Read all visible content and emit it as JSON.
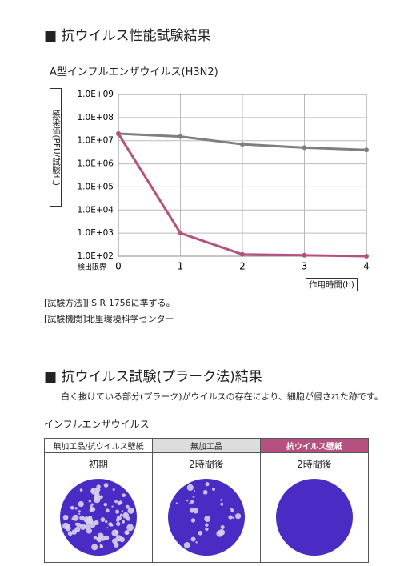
{
  "heading1": "■ 抗ウイルス性能試験結果",
  "chart_data": {
    "type": "line",
    "title": "A型インフルエンザウイルス(H3N2)",
    "ylabel": "感染価(PFU/試験片)",
    "xlabel": "作用時間(h)",
    "annotation": "検出限界",
    "x": [
      0,
      1,
      2,
      3,
      4
    ],
    "xlim": [
      0,
      4
    ],
    "xticks": [
      0,
      1,
      2,
      3,
      4
    ],
    "yscale": "log",
    "ylim": [
      100,
      1000000000
    ],
    "yticks": [
      {
        "value": 100,
        "label": "1.0E+02"
      },
      {
        "value": 1000,
        "label": "1.0E+03"
      },
      {
        "value": 10000,
        "label": "1.0E+04"
      },
      {
        "value": 100000,
        "label": "1.0E+05"
      },
      {
        "value": 1000000,
        "label": "1.0E+06"
      },
      {
        "value": 10000000,
        "label": "1.0E+07"
      },
      {
        "value": 100000000,
        "label": "1.0E+08"
      },
      {
        "value": 1000000000,
        "label": "1.0E+09"
      }
    ],
    "grid": true,
    "series": [
      {
        "color": "#7f7f7f",
        "values": [
          20000000,
          15000000,
          7000000,
          5000000,
          4000000
        ]
      },
      {
        "color": "#b5507f",
        "values": [
          20000000,
          1000,
          120,
          110,
          100
        ]
      }
    ]
  },
  "notes": [
    "[試験方法]JIS R 1756に準ずる。",
    "[試験機関]北里環境科学センター"
  ],
  "heading2": "■ 抗ウイルス試験(プラーク法)結果",
  "description": "白く抜けている部分(プラーク)がウイルスの存在により、細胞が侵された跡です。",
  "table": {
    "caption": "インフルエンザウイルス",
    "headers": [
      "無加工品/抗ウイルス壁紙",
      "無加工品",
      "抗ウイルス壁紙"
    ],
    "rows": [
      [
        "初期",
        "2時間後",
        "2時間後"
      ]
    ]
  }
}
